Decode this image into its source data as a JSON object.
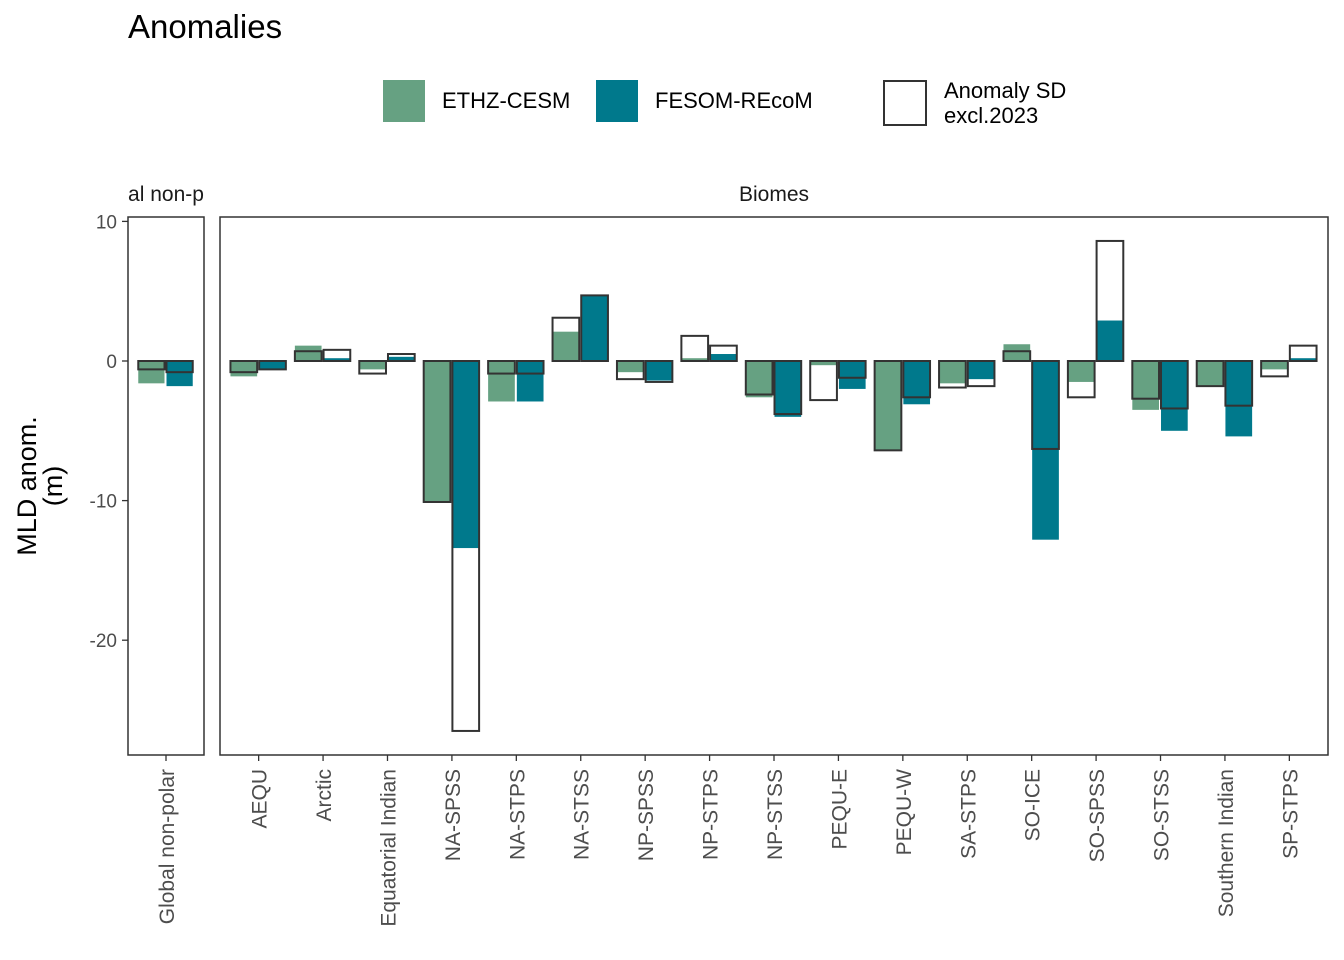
{
  "chart_data": {
    "type": "bar",
    "title": "Anomalies",
    "ylabel_line1": "MLD anom.",
    "ylabel_line2": "(m)",
    "ylim": [
      -28,
      10
    ],
    "yticks": [
      10,
      0,
      -10,
      -20
    ],
    "legend": {
      "placement": "top",
      "series": [
        {
          "name": "ETHZ-CESM",
          "color": "#66a182"
        },
        {
          "name": "FESOM-REcoM",
          "color": "#00798c"
        }
      ],
      "sd_label_line1": "Anomaly SD",
      "sd_label_line2": "excl.2023"
    },
    "panels": [
      {
        "strip": "Global non-polar",
        "strip_display": "al non-p",
        "categories": [
          "Global non-polar"
        ],
        "series": [
          {
            "name": "ETHZ-CESM",
            "values": [
              -1.6
            ]
          },
          {
            "name": "FESOM-REcoM",
            "values": [
              -1.8
            ]
          }
        ],
        "anomaly_sd": [
          {
            "name": "ETHZ-CESM",
            "values": [
              -0.6
            ]
          },
          {
            "name": "FESOM-REcoM",
            "values": [
              -0.8
            ]
          }
        ]
      },
      {
        "strip": "Biomes",
        "strip_display": "Biomes",
        "categories": [
          "AEQU",
          "Arctic",
          "Equatorial Indian",
          "NA-SPSS",
          "NA-STPS",
          "NA-STSS",
          "NP-SPSS",
          "NP-STPS",
          "NP-STSS",
          "PEQU-E",
          "PEQU-W",
          "SA-STPS",
          "SO-ICE",
          "SO-SPSS",
          "SO-STSS",
          "Southern Indian",
          "SP-STPS"
        ],
        "series": [
          {
            "name": "ETHZ-CESM",
            "values": [
              -1.1,
              1.1,
              -0.6,
              -10.1,
              -2.9,
              2.1,
              -0.8,
              0.2,
              -2.6,
              -0.3,
              -6.4,
              -1.6,
              1.2,
              -1.5,
              -3.5,
              -1.8,
              -0.6
            ]
          },
          {
            "name": "FESOM-REcoM",
            "values": [
              -0.6,
              0.2,
              0.3,
              -13.4,
              -2.9,
              4.7,
              -1.4,
              0.5,
              -4.0,
              -2.0,
              -3.1,
              -1.3,
              -12.8,
              2.9,
              -5.0,
              -5.4,
              0.2
            ]
          }
        ],
        "anomaly_sd": [
          {
            "name": "ETHZ-CESM",
            "values": [
              -0.8,
              0.7,
              -0.9,
              -10.1,
              -0.9,
              3.1,
              -1.3,
              1.8,
              -2.4,
              -2.8,
              -6.4,
              -1.9,
              0.7,
              -2.6,
              -2.7,
              -1.8,
              -1.1
            ]
          },
          {
            "name": "FESOM-REcoM",
            "values": [
              -0.6,
              0.8,
              0.5,
              -26.5,
              -0.9,
              4.7,
              -1.5,
              1.1,
              -3.8,
              -1.2,
              -2.6,
              -1.8,
              -6.3,
              8.6,
              -3.4,
              -3.2,
              1.1
            ]
          }
        ]
      }
    ]
  }
}
